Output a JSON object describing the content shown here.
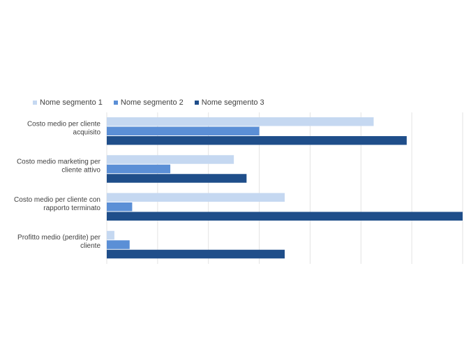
{
  "chart_data": {
    "type": "bar",
    "orientation": "horizontal",
    "categories": [
      "Costo medio per cliente acquisito",
      "Costo medio marketing per cliente attivo",
      "Costo medio per cliente con rapporto terminato",
      "Profitto medio (perdite) per cliente"
    ],
    "category_lines": [
      [
        "Costo medio per cliente",
        "acquisito"
      ],
      [
        "Costo medio marketing per",
        "cliente attivo"
      ],
      [
        "Costo medio per cliente con",
        "rapporto terminato"
      ],
      [
        "Profitto medio (perdite) per",
        "cliente"
      ]
    ],
    "series": [
      {
        "name": "Nome segmento 1",
        "color": "#c5d8f1",
        "values": [
          5.25,
          2.5,
          3.5,
          0.15
        ]
      },
      {
        "name": "Nome segmento 2",
        "color": "#5b8fd6",
        "values": [
          3.0,
          1.25,
          0.5,
          0.45
        ]
      },
      {
        "name": "Nome segmento 3",
        "color": "#1f4e8a",
        "values": [
          5.9,
          2.75,
          7.0,
          3.5
        ]
      }
    ],
    "xlim": [
      0,
      7
    ],
    "grid": true,
    "legend_position": "top-left",
    "title": "",
    "xlabel": "",
    "ylabel": ""
  }
}
